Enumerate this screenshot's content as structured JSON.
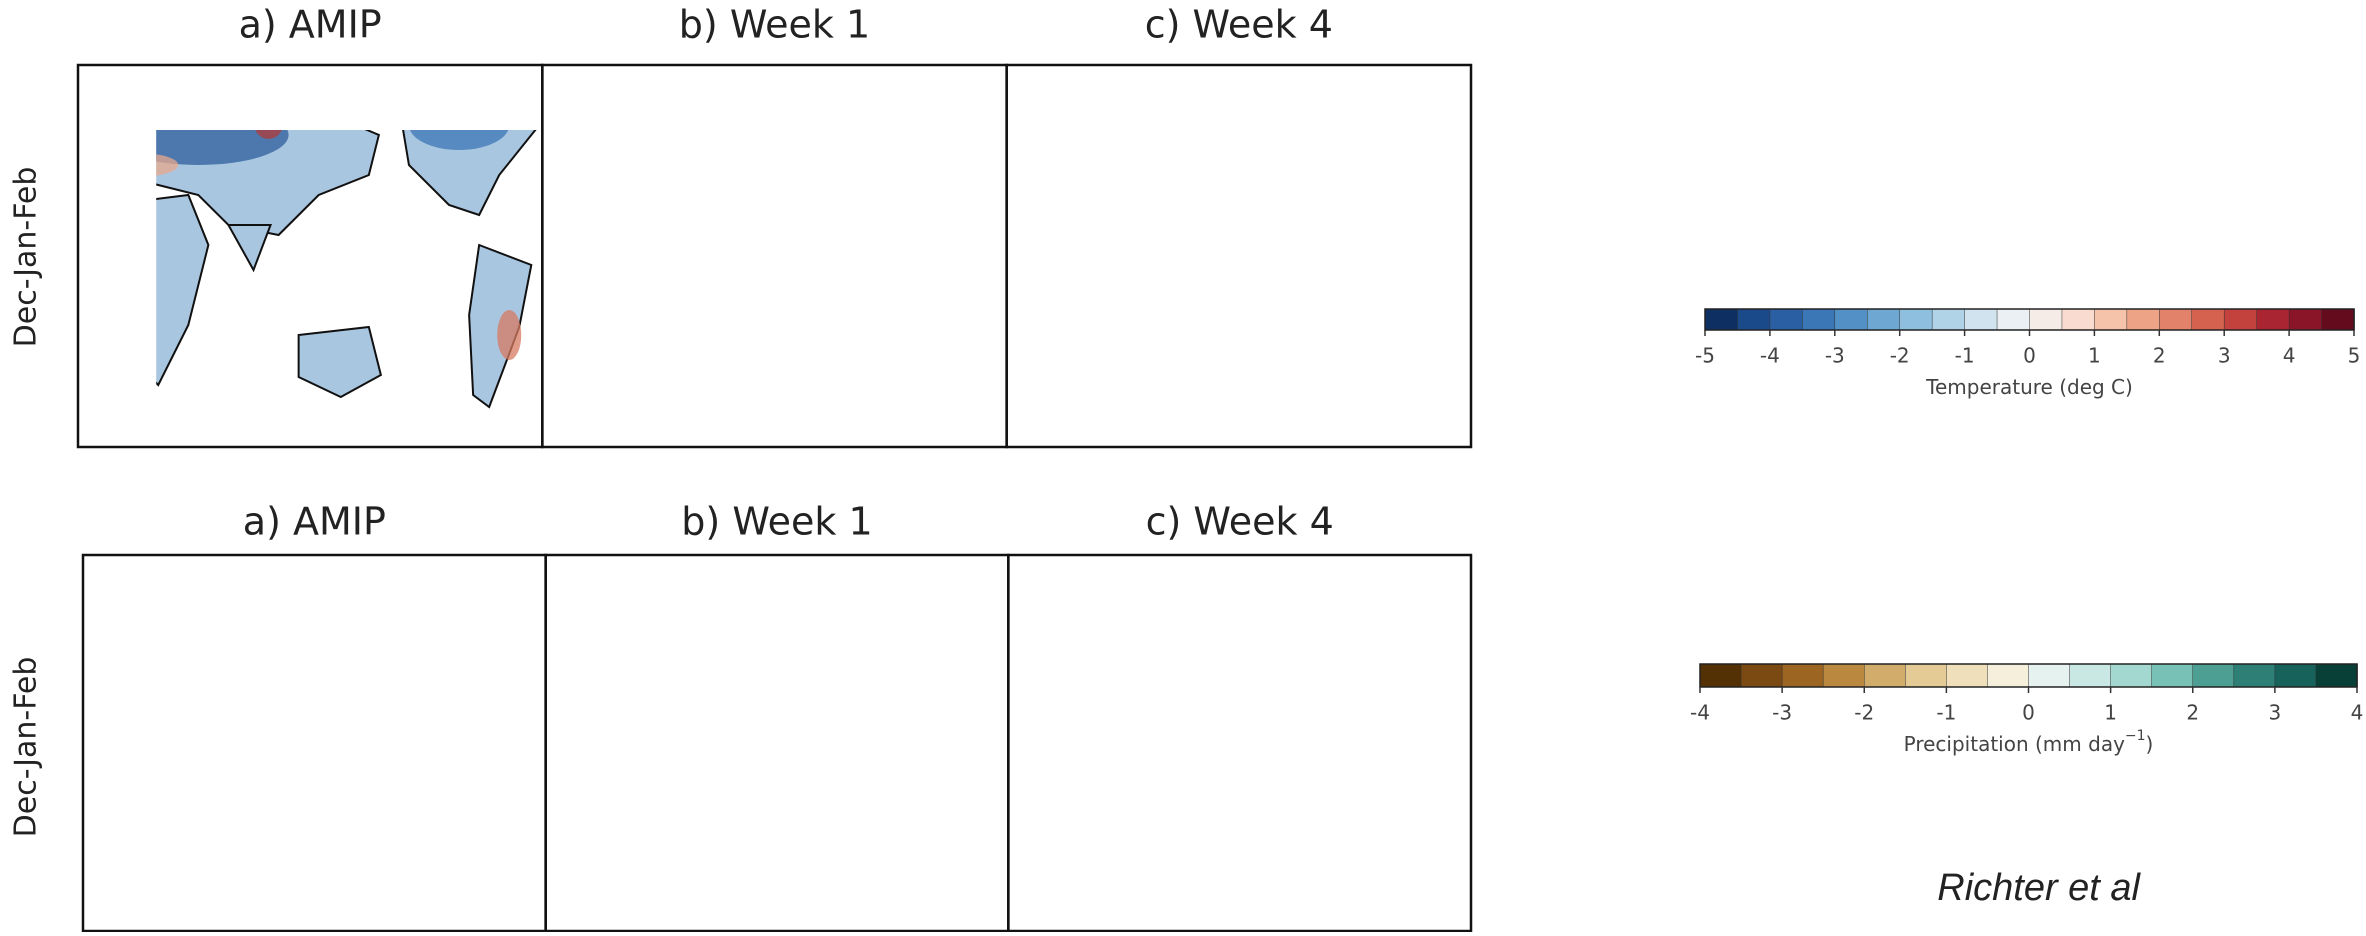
{
  "rows": [
    {
      "label": "Dec-Jan-Feb",
      "panels": [
        "a) AMIP",
        "b) Week 1",
        "c) Week 4"
      ]
    },
    {
      "label": "Dec-Jan-Feb",
      "panels": [
        "a) AMIP",
        "b) Week 1",
        "c) Week 4"
      ]
    }
  ],
  "colorbars": [
    {
      "label": "Temperature (deg C)",
      "lim": [
        -5,
        5
      ],
      "ticks": [
        -5,
        -4,
        -3,
        -2,
        -1,
        0,
        1,
        2,
        3,
        4,
        5
      ],
      "colors": [
        "#0d2f61",
        "#1b4a8a",
        "#2a5fa3",
        "#3b76b6",
        "#5290c5",
        "#6ea7d2",
        "#8fbfdf",
        "#b0d3e8",
        "#d0e3ef",
        "#eaf0f4",
        "#f5ece8",
        "#f9dccf",
        "#f5c2aa",
        "#eda385",
        "#e2826a",
        "#d5614f",
        "#c3423e",
        "#a82531",
        "#8a1428",
        "#650b1e"
      ]
    },
    {
      "label": "Precipitation (mm day",
      "label_sup": "−1",
      "label_end": ")",
      "lim": [
        -4,
        4
      ],
      "ticks": [
        -4,
        -3,
        -2,
        -1,
        0,
        1,
        2,
        3,
        4
      ],
      "colors": [
        "#543005",
        "#7a4a12",
        "#9c6521",
        "#bb8840",
        "#d2ac6a",
        "#e4cb95",
        "#efe0bb",
        "#f6efdc",
        "#e6f2f0",
        "#c9e8e3",
        "#a2d8cf",
        "#78c1b6",
        "#4d9f94",
        "#2e7f75",
        "#17625a",
        "#083f37"
      ]
    }
  ],
  "credit": "Richter et al"
}
